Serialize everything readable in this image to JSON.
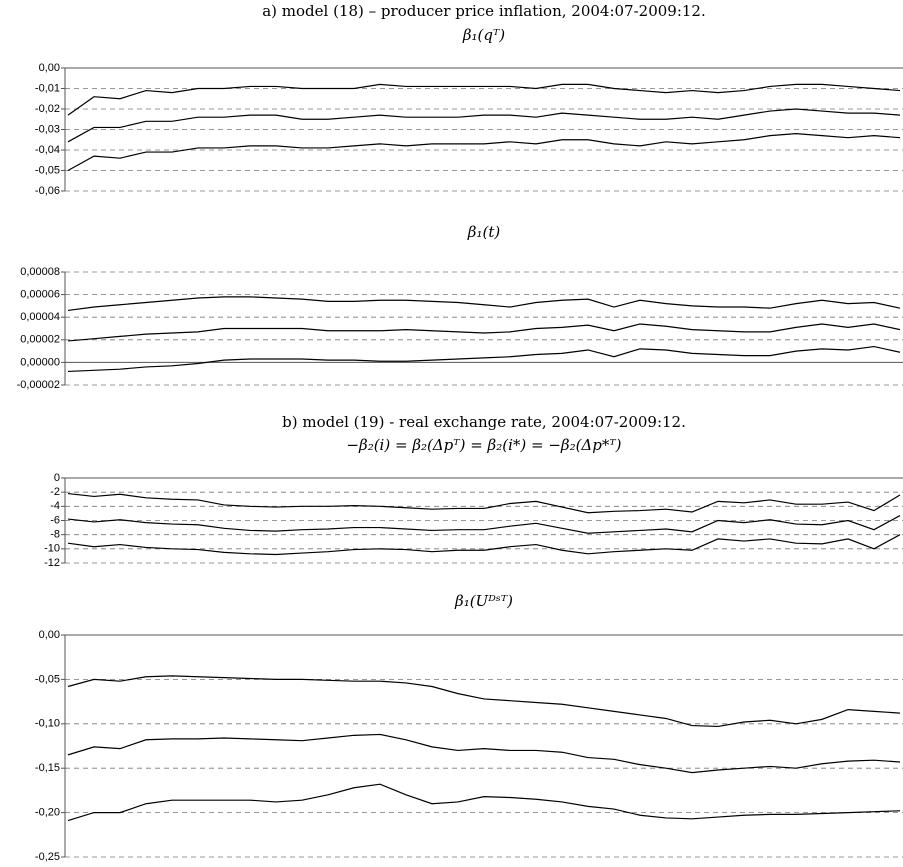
{
  "chart_data": [
    {
      "type": "line",
      "suptitle": "a) model (18) – producer price inflation, 2004:07-2009:12.",
      "title": "β₁(qᵀ)",
      "ylim": [
        -0.06,
        0
      ],
      "yticks": [
        {
          "value": 0,
          "label": "0,00"
        },
        {
          "value": -0.01,
          "label": "-0,01"
        },
        {
          "value": -0.02,
          "label": "-0,02"
        },
        {
          "value": -0.03,
          "label": "-0,03"
        },
        {
          "value": -0.04,
          "label": "-0,04"
        },
        {
          "value": -0.05,
          "label": "-0,05"
        },
        {
          "value": -0.06,
          "label": "-0,06"
        }
      ],
      "grid": true,
      "series": [
        {
          "color": "#000000",
          "values": [
            -0.023,
            -0.014,
            -0.015,
            -0.011,
            -0.012,
            -0.01,
            -0.01,
            -0.009,
            -0.009,
            -0.01,
            -0.01,
            -0.01,
            -0.008,
            -0.009,
            -0.009,
            -0.009,
            -0.009,
            -0.009,
            -0.01,
            -0.008,
            -0.008,
            -0.01,
            -0.011,
            -0.012,
            -0.011,
            -0.012,
            -0.011,
            -0.009,
            -0.008,
            -0.008,
            -0.009,
            -0.01,
            -0.011
          ]
        },
        {
          "color": "#000000",
          "values": [
            -0.036,
            -0.029,
            -0.029,
            -0.026,
            -0.026,
            -0.024,
            -0.024,
            -0.023,
            -0.023,
            -0.025,
            -0.025,
            -0.024,
            -0.023,
            -0.024,
            -0.024,
            -0.024,
            -0.023,
            -0.023,
            -0.024,
            -0.022,
            -0.023,
            -0.024,
            -0.025,
            -0.025,
            -0.024,
            -0.025,
            -0.023,
            -0.021,
            -0.02,
            -0.021,
            -0.022,
            -0.022,
            -0.023
          ]
        },
        {
          "color": "#000000",
          "values": [
            -0.05,
            -0.043,
            -0.044,
            -0.041,
            -0.041,
            -0.039,
            -0.039,
            -0.038,
            -0.038,
            -0.039,
            -0.039,
            -0.038,
            -0.037,
            -0.038,
            -0.037,
            -0.037,
            -0.037,
            -0.036,
            -0.037,
            -0.035,
            -0.035,
            -0.037,
            -0.038,
            -0.036,
            -0.037,
            -0.036,
            -0.035,
            -0.033,
            -0.032,
            -0.033,
            -0.034,
            -0.033,
            -0.034
          ]
        }
      ]
    },
    {
      "type": "line",
      "title": "β₁(t)",
      "ylim": [
        -2e-05,
        8e-05
      ],
      "yticks": [
        {
          "value": 8e-05,
          "label": "0,00008"
        },
        {
          "value": 6e-05,
          "label": "0,00006"
        },
        {
          "value": 4e-05,
          "label": "0,00004"
        },
        {
          "value": 2e-05,
          "label": "0,00002"
        },
        {
          "value": 0,
          "label": "0,00000"
        },
        {
          "value": -2e-05,
          "label": "-0,00002"
        }
      ],
      "grid": true,
      "series": [
        {
          "color": "#000000",
          "values": [
            4.6e-05,
            4.9e-05,
            5.1e-05,
            5.3e-05,
            5.5e-05,
            5.7e-05,
            5.8e-05,
            5.8e-05,
            5.7e-05,
            5.6e-05,
            5.4e-05,
            5.4e-05,
            5.5e-05,
            5.5e-05,
            5.4e-05,
            5.3e-05,
            5.1e-05,
            4.9e-05,
            5.3e-05,
            5.5e-05,
            5.6e-05,
            4.9e-05,
            5.5e-05,
            5.2e-05,
            5e-05,
            4.9e-05,
            4.9e-05,
            4.8e-05,
            5.2e-05,
            5.5e-05,
            5.2e-05,
            5.3e-05,
            4.8e-05
          ]
        },
        {
          "color": "#000000",
          "values": [
            1.9e-05,
            2.1e-05,
            2.3e-05,
            2.5e-05,
            2.6e-05,
            2.7e-05,
            3e-05,
            3e-05,
            3e-05,
            3e-05,
            2.8e-05,
            2.8e-05,
            2.8e-05,
            2.9e-05,
            2.8e-05,
            2.7e-05,
            2.6e-05,
            2.7e-05,
            3e-05,
            3.1e-05,
            3.3e-05,
            2.8e-05,
            3.4e-05,
            3.2e-05,
            2.9e-05,
            2.8e-05,
            2.7e-05,
            2.7e-05,
            3.1e-05,
            3.4e-05,
            3.1e-05,
            3.4e-05,
            2.9e-05
          ]
        },
        {
          "color": "#000000",
          "values": [
            -8e-06,
            -7e-06,
            -6e-06,
            -4e-06,
            -3e-06,
            -1e-06,
            2e-06,
            3e-06,
            3e-06,
            3e-06,
            2e-06,
            2e-06,
            1e-06,
            1e-06,
            2e-06,
            3e-06,
            4e-06,
            5e-06,
            7e-06,
            8e-06,
            1.1e-05,
            5e-06,
            1.2e-05,
            1.1e-05,
            8e-06,
            7e-06,
            6e-06,
            6e-06,
            1e-05,
            1.2e-05,
            1.1e-05,
            1.4e-05,
            9e-06
          ]
        }
      ]
    },
    {
      "type": "line",
      "suptitle": "b) model (19) - real exchange rate, 2004:07-2009:12.",
      "title": "−β₂(i) = β₂(Δpᵀ) = β₂(i*) = −β₂(Δp*ᵀ)",
      "ylim": [
        -12,
        0
      ],
      "yticks": [
        0,
        -2,
        -4,
        -6,
        -8,
        -10,
        -12
      ],
      "grid": true,
      "series": [
        {
          "color": "#000000",
          "values": [
            -2.2,
            -2.6,
            -2.3,
            -2.8,
            -3.0,
            -3.1,
            -3.8,
            -4.0,
            -4.1,
            -4.0,
            -4.0,
            -3.9,
            -4.0,
            -4.2,
            -4.4,
            -4.3,
            -4.3,
            -3.6,
            -3.3,
            -4.1,
            -4.9,
            -4.7,
            -4.6,
            -4.4,
            -4.8,
            -3.3,
            -3.5,
            -3.1,
            -3.7,
            -3.7,
            -3.4,
            -4.6,
            -2.4
          ]
        },
        {
          "color": "#000000",
          "values": [
            -5.8,
            -6.2,
            -5.9,
            -6.3,
            -6.5,
            -6.6,
            -7.1,
            -7.4,
            -7.5,
            -7.3,
            -7.2,
            -7.0,
            -7.0,
            -7.2,
            -7.4,
            -7.3,
            -7.3,
            -6.8,
            -6.4,
            -7.1,
            -7.8,
            -7.6,
            -7.4,
            -7.2,
            -7.6,
            -6.0,
            -6.3,
            -5.9,
            -6.5,
            -6.6,
            -6.0,
            -7.3,
            -5.3
          ]
        },
        {
          "color": "#000000",
          "values": [
            -9.2,
            -9.7,
            -9.4,
            -9.8,
            -10.0,
            -10.1,
            -10.5,
            -10.7,
            -10.8,
            -10.6,
            -10.4,
            -10.1,
            -10.0,
            -10.1,
            -10.4,
            -10.2,
            -10.2,
            -9.7,
            -9.4,
            -10.2,
            -10.7,
            -10.4,
            -10.2,
            -10.0,
            -10.2,
            -8.6,
            -8.9,
            -8.6,
            -9.2,
            -9.3,
            -8.6,
            -10.0,
            -8.0
          ]
        }
      ]
    },
    {
      "type": "line",
      "title": "β₁(Uᴰˢᵀ)",
      "ylim": [
        -0.25,
        0
      ],
      "yticks": [
        {
          "value": 0,
          "label": "0,00"
        },
        {
          "value": -0.05,
          "label": "-0,05"
        },
        {
          "value": -0.1,
          "label": "-0,10"
        },
        {
          "value": -0.15,
          "label": "-0,15"
        },
        {
          "value": -0.2,
          "label": "-0,20"
        },
        {
          "value": -0.25,
          "label": "-0,25"
        }
      ],
      "grid": true,
      "series": [
        {
          "color": "#000000",
          "values": [
            -0.058,
            -0.05,
            -0.052,
            -0.047,
            -0.046,
            -0.047,
            -0.048,
            -0.049,
            -0.05,
            -0.05,
            -0.051,
            -0.052,
            -0.052,
            -0.054,
            -0.058,
            -0.066,
            -0.072,
            -0.074,
            -0.076,
            -0.078,
            -0.082,
            -0.086,
            -0.09,
            -0.094,
            -0.102,
            -0.103,
            -0.098,
            -0.096,
            -0.1,
            -0.095,
            -0.084,
            -0.086,
            -0.088
          ]
        },
        {
          "color": "#000000",
          "values": [
            -0.135,
            -0.126,
            -0.128,
            -0.118,
            -0.117,
            -0.117,
            -0.116,
            -0.117,
            -0.118,
            -0.119,
            -0.116,
            -0.113,
            -0.112,
            -0.118,
            -0.126,
            -0.13,
            -0.128,
            -0.13,
            -0.13,
            -0.132,
            -0.138,
            -0.14,
            -0.146,
            -0.15,
            -0.155,
            -0.152,
            -0.15,
            -0.148,
            -0.15,
            -0.145,
            -0.142,
            -0.141,
            -0.143
          ]
        },
        {
          "color": "#000000",
          "values": [
            -0.209,
            -0.2,
            -0.2,
            -0.19,
            -0.186,
            -0.186,
            -0.186,
            -0.186,
            -0.188,
            -0.186,
            -0.18,
            -0.172,
            -0.168,
            -0.18,
            -0.19,
            -0.188,
            -0.182,
            -0.183,
            -0.185,
            -0.188,
            -0.193,
            -0.196,
            -0.203,
            -0.206,
            -0.207,
            -0.205,
            -0.203,
            -0.202,
            -0.202,
            -0.201,
            -0.2,
            -0.199,
            -0.198
          ]
        }
      ]
    }
  ]
}
